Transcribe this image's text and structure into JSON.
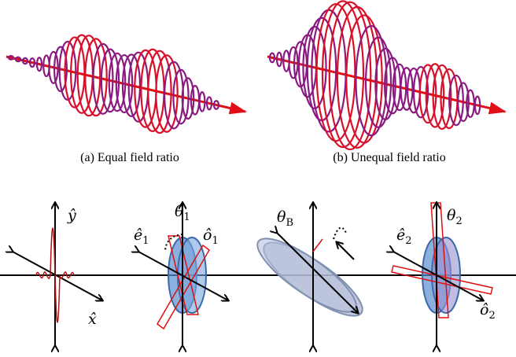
{
  "figure": {
    "subfigures": [
      {
        "caption": "(a) Equal field ratio"
      },
      {
        "caption": "(b) Unequal field ratio"
      }
    ],
    "diagram": {
      "labels": [
        {
          "base": "ŷ",
          "sub": ""
        },
        {
          "base": "x̂",
          "sub": ""
        },
        {
          "base": "θ",
          "sub": "1"
        },
        {
          "base": "ê",
          "sub": "1"
        },
        {
          "base": "ô",
          "sub": "1"
        },
        {
          "base": "θ",
          "sub": "B"
        },
        {
          "base": "ê",
          "sub": "2"
        },
        {
          "base": "θ",
          "sub": "2"
        },
        {
          "base": "ô",
          "sub": "2"
        }
      ]
    }
  }
}
